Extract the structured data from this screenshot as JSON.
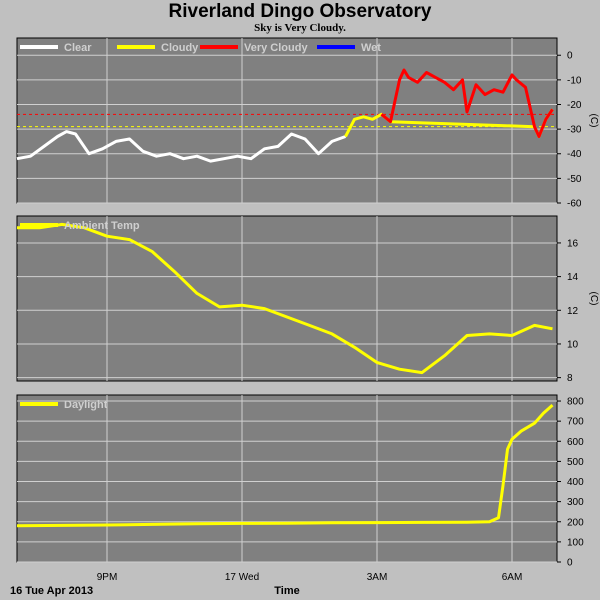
{
  "page": {
    "title": "Riverland Dingo Observatory",
    "subtitle": "Sky is Very Cloudy."
  },
  "chart_data": [
    {
      "type": "line",
      "title": "Sky",
      "ylabel": "(C)",
      "ylim": [
        -60,
        7
      ],
      "yticks": [
        0,
        -10,
        -20,
        -30,
        -40,
        -50,
        -60
      ],
      "grid": true,
      "xlim": [
        0,
        12
      ],
      "thresholds": [
        {
          "value": -24,
          "color": "#ff0000"
        },
        {
          "value": -29,
          "color": "#ffff00"
        }
      ],
      "series": [
        {
          "name": "Clear",
          "color": "#ffffff",
          "x": [
            0,
            0.3,
            0.6,
            0.9,
            1.1,
            1.3,
            1.6,
            1.9,
            2.2,
            2.5,
            2.8,
            3.1,
            3.4,
            3.7,
            4,
            4.3,
            4.6,
            4.9,
            5.2,
            5.5,
            5.8,
            6.1,
            6.4,
            6.7,
            7,
            7.3
          ],
          "y": [
            -42,
            -41,
            -37,
            -33,
            -31,
            -32,
            -40,
            -38,
            -35,
            -34,
            -39,
            -41,
            -40,
            -42,
            -41,
            -43,
            -42,
            -41,
            -42,
            -38,
            -37,
            -32,
            -34,
            -40,
            -35,
            -33
          ]
        },
        {
          "name": "Cloudy",
          "color": "#ffff00",
          "x": [
            7.3,
            7.5,
            7.7,
            7.9,
            8.1,
            8.3,
            11.5,
            11.6,
            11.75,
            11.9
          ],
          "y": [
            -33,
            -26,
            -25,
            -26,
            -24,
            -27,
            -29,
            -33,
            -26,
            -22
          ]
        },
        {
          "name": "Very Cloudy",
          "color": "#ff0000",
          "x": [
            8.1,
            8.3,
            8.5,
            8.6,
            8.7,
            8.9,
            9.1,
            9.3,
            9.5,
            9.7,
            9.9,
            10.0,
            10.2,
            10.4,
            10.6,
            10.8,
            11.0,
            11.1,
            11.3,
            11.5,
            11.6,
            11.75,
            11.9
          ],
          "y": [
            -24,
            -27,
            -10,
            -6,
            -9,
            -11,
            -7,
            -9,
            -11,
            -14,
            -10,
            -23,
            -12,
            -16,
            -14,
            -15,
            -8,
            -10,
            -13,
            -29,
            -33,
            -26,
            -22
          ]
        },
        {
          "name": "Wet",
          "color": "#0000ff",
          "x": [],
          "y": []
        }
      ]
    },
    {
      "type": "line",
      "title": "Ambient",
      "ylabel": "(C)",
      "ylim": [
        7.8,
        17.6
      ],
      "yticks": [
        16,
        14,
        12,
        10,
        8
      ],
      "grid": true,
      "xlim": [
        0,
        12
      ],
      "series": [
        {
          "name": "Ambient Temp",
          "color": "#ffff00",
          "x": [
            0,
            0.5,
            1,
            1.5,
            2,
            2.5,
            3,
            3.5,
            4,
            4.5,
            5,
            5.5,
            6,
            6.5,
            7,
            7.5,
            8,
            8.5,
            9,
            9.5,
            10,
            10.5,
            11,
            11.5,
            11.9
          ],
          "y": [
            16.9,
            16.9,
            17.1,
            16.9,
            16.4,
            16.2,
            15.5,
            14.3,
            13.0,
            12.2,
            12.3,
            12.1,
            11.6,
            11.1,
            10.6,
            9.8,
            8.9,
            8.5,
            8.3,
            9.3,
            10.5,
            10.6,
            10.5,
            11.1,
            10.9
          ]
        }
      ]
    },
    {
      "type": "line",
      "title": "Daylight",
      "ylabel": "",
      "ylim": [
        0,
        830
      ],
      "yticks": [
        800,
        700,
        600,
        500,
        400,
        300,
        200,
        100,
        0
      ],
      "grid": true,
      "xlim": [
        0,
        12
      ],
      "series": [
        {
          "name": "Daylight",
          "color": "#ffff00",
          "x": [
            0,
            1,
            2,
            3,
            4,
            5,
            6,
            7,
            8,
            9,
            10,
            10.5,
            10.7,
            10.8,
            10.9,
            11.0,
            11.2,
            11.5,
            11.7,
            11.9
          ],
          "y": [
            180,
            182,
            184,
            187,
            190,
            192,
            193,
            195,
            196,
            197,
            198,
            200,
            220,
            380,
            560,
            610,
            650,
            690,
            740,
            780
          ]
        }
      ]
    }
  ],
  "xaxis": {
    "ticks": [
      {
        "x": 2,
        "label": "9PM"
      },
      {
        "x": 5,
        "label": "17 Wed"
      },
      {
        "x": 8,
        "label": "3AM"
      },
      {
        "x": 11,
        "label": "6AM"
      }
    ],
    "date_label": "16 Tue Apr 2013",
    "xlabel": "Time"
  }
}
